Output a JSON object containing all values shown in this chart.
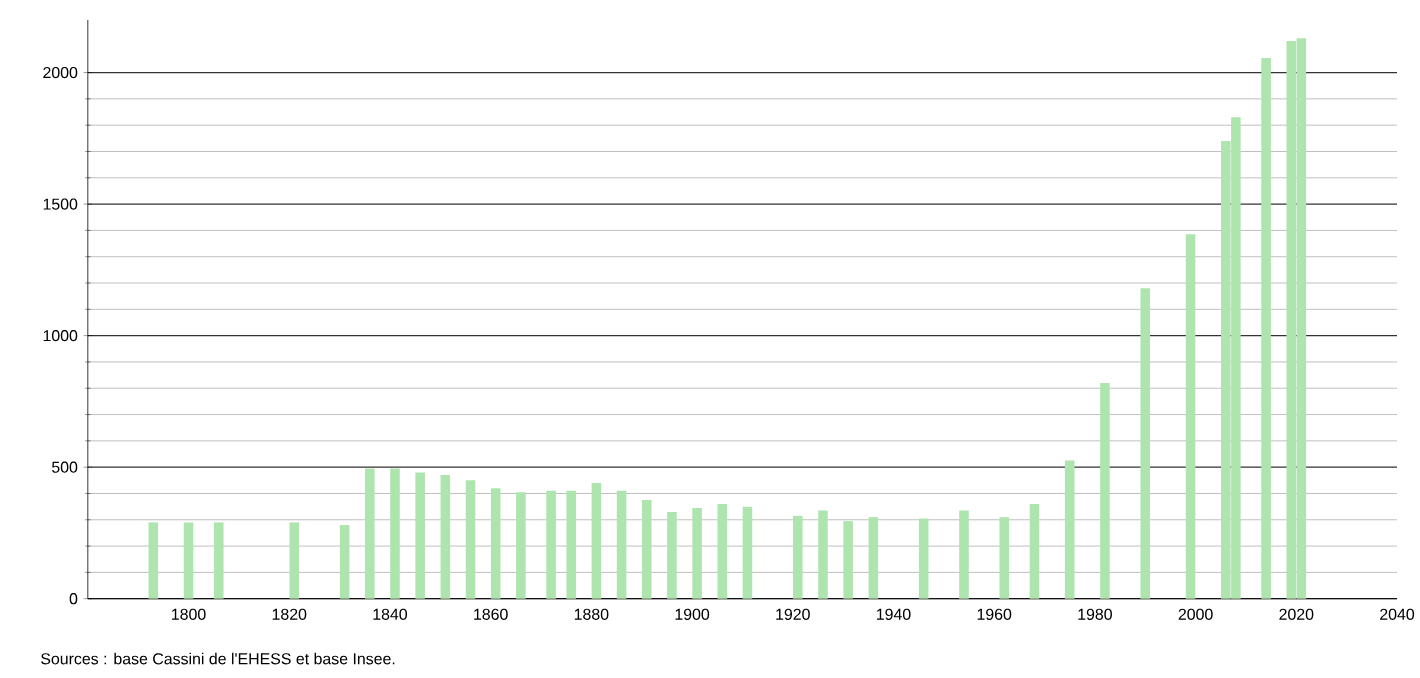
{
  "chart_data": {
    "type": "bar",
    "color": "#aee4ae",
    "x": [
      1793,
      1800,
      1806,
      1821,
      1831,
      1836,
      1841,
      1846,
      1851,
      1856,
      1861,
      1866,
      1872,
      1876,
      1881,
      1886,
      1891,
      1896,
      1901,
      1906,
      1911,
      1921,
      1926,
      1931,
      1936,
      1946,
      1954,
      1962,
      1968,
      1975,
      1982,
      1990,
      1999,
      2006,
      2008,
      2014,
      2019,
      2021
    ],
    "values": [
      290,
      290,
      290,
      290,
      280,
      495,
      495,
      480,
      470,
      450,
      420,
      405,
      410,
      410,
      440,
      410,
      375,
      330,
      345,
      360,
      350,
      315,
      335,
      295,
      310,
      305,
      335,
      310,
      360,
      525,
      820,
      1180,
      1385,
      1740,
      1830,
      2055,
      2120,
      2130
    ],
    "xlim": [
      1780,
      2040
    ],
    "xticks": [
      1800,
      1820,
      1840,
      1860,
      1880,
      1900,
      1920,
      1940,
      1960,
      1980,
      2000,
      2020,
      2040
    ],
    "ylim": [
      0,
      2200
    ],
    "yticks": [
      0,
      500,
      1000,
      1500,
      2000
    ],
    "grid": "y",
    "annotations": [
      "Sources : base Cassini de l'EHESS et base Insee."
    ]
  }
}
